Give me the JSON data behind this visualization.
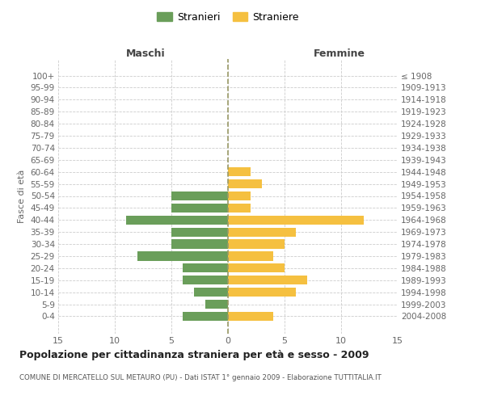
{
  "age_groups": [
    "100+",
    "95-99",
    "90-94",
    "85-89",
    "80-84",
    "75-79",
    "70-74",
    "65-69",
    "60-64",
    "55-59",
    "50-54",
    "45-49",
    "40-44",
    "35-39",
    "30-34",
    "25-29",
    "20-24",
    "15-19",
    "10-14",
    "5-9",
    "0-4"
  ],
  "birth_years": [
    "≤ 1908",
    "1909-1913",
    "1914-1918",
    "1919-1923",
    "1924-1928",
    "1929-1933",
    "1934-1938",
    "1939-1943",
    "1944-1948",
    "1949-1953",
    "1954-1958",
    "1959-1963",
    "1964-1968",
    "1969-1973",
    "1974-1978",
    "1979-1983",
    "1984-1988",
    "1989-1993",
    "1994-1998",
    "1999-2003",
    "2004-2008"
  ],
  "maschi": [
    0,
    0,
    0,
    0,
    0,
    0,
    0,
    0,
    0,
    0,
    5,
    5,
    9,
    5,
    5,
    8,
    4,
    4,
    3,
    2,
    4
  ],
  "femmine": [
    0,
    0,
    0,
    0,
    0,
    0,
    0,
    0,
    2,
    3,
    2,
    2,
    12,
    6,
    5,
    4,
    5,
    7,
    6,
    0,
    4
  ],
  "male_color": "#6a9e5a",
  "female_color": "#f5c040",
  "title": "Popolazione per cittadinanza straniera per età e sesso - 2009",
  "subtitle": "COMUNE DI MERCATELLO SUL METAURO (PU) - Dati ISTAT 1° gennaio 2009 - Elaborazione TUTTITALIA.IT",
  "ylabel_left": "Fasce di età",
  "xlabel_left": "Maschi",
  "xlabel_right": "Femmine",
  "legend_male": "Stranieri",
  "legend_female": "Straniere",
  "xlim": 15,
  "background_color": "#ffffff",
  "grid_color": "#cccccc",
  "bar_height": 0.75,
  "label_color": "#666666",
  "center_line_color": "#999966"
}
